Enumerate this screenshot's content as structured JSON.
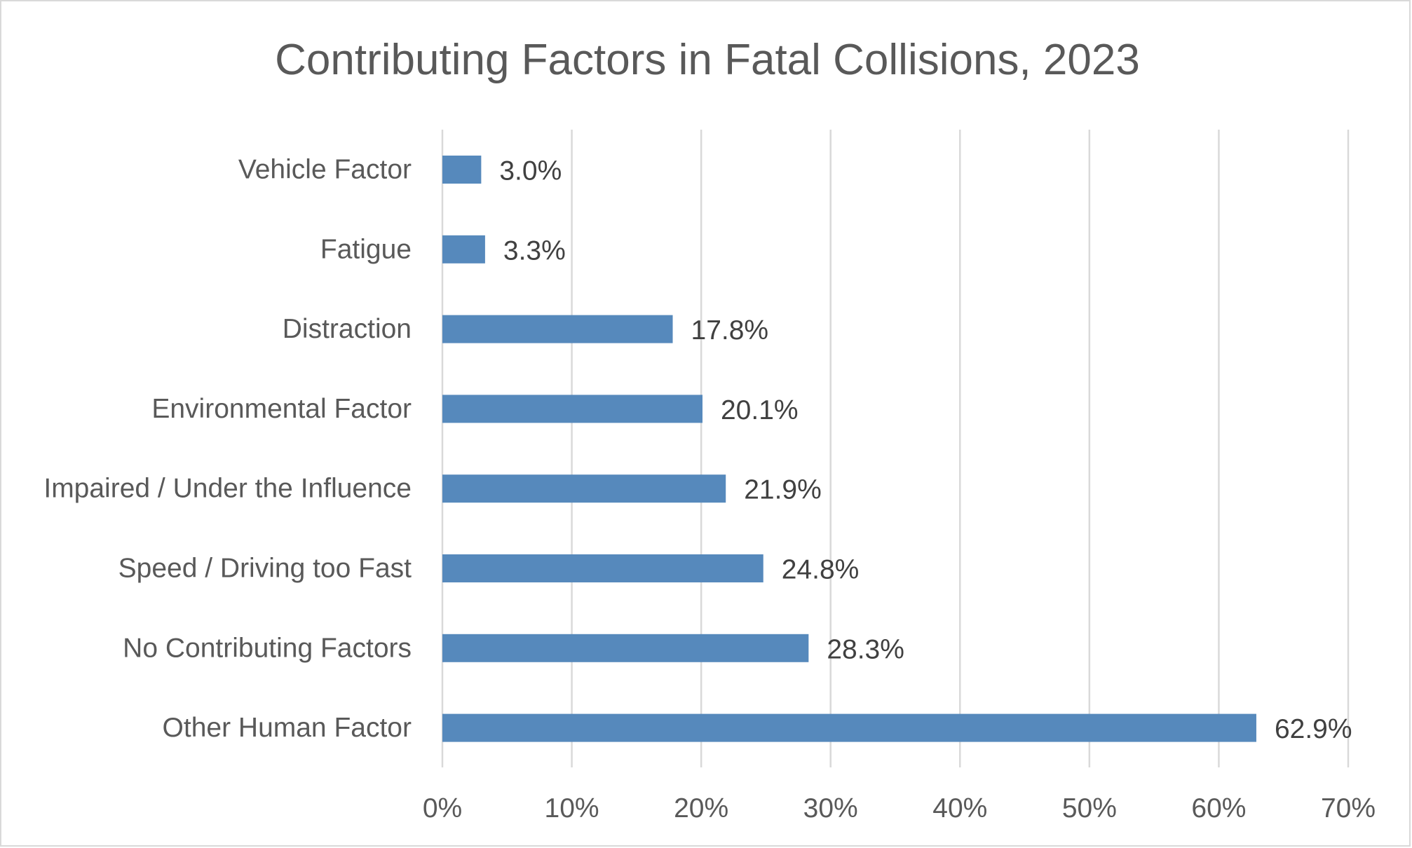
{
  "chart_data": {
    "type": "bar",
    "orientation": "horizontal",
    "title": "Contributing Factors in Fatal Collisions, 2023",
    "xlabel": "",
    "ylabel": "",
    "categories": [
      "Vehicle Factor",
      "Fatigue",
      "Distraction",
      "Environmental Factor",
      "Impaired / Under the Influence",
      "Speed / Driving too Fast",
      "No Contributing Factors",
      "Other Human Factor"
    ],
    "values": [
      3.0,
      3.3,
      17.8,
      20.1,
      21.9,
      24.8,
      28.3,
      62.9
    ],
    "value_labels": [
      "3.0%",
      "3.3%",
      "17.8%",
      "20.1%",
      "21.9%",
      "24.8%",
      "28.3%",
      "62.9%"
    ],
    "xlim": [
      0,
      70
    ],
    "xticks": [
      0,
      10,
      20,
      30,
      40,
      50,
      60,
      70
    ],
    "xtick_labels": [
      "0%",
      "10%",
      "20%",
      "30%",
      "40%",
      "50%",
      "60%",
      "70%"
    ],
    "grid": true,
    "legend": "none",
    "bar_color": "#5689BC"
  }
}
